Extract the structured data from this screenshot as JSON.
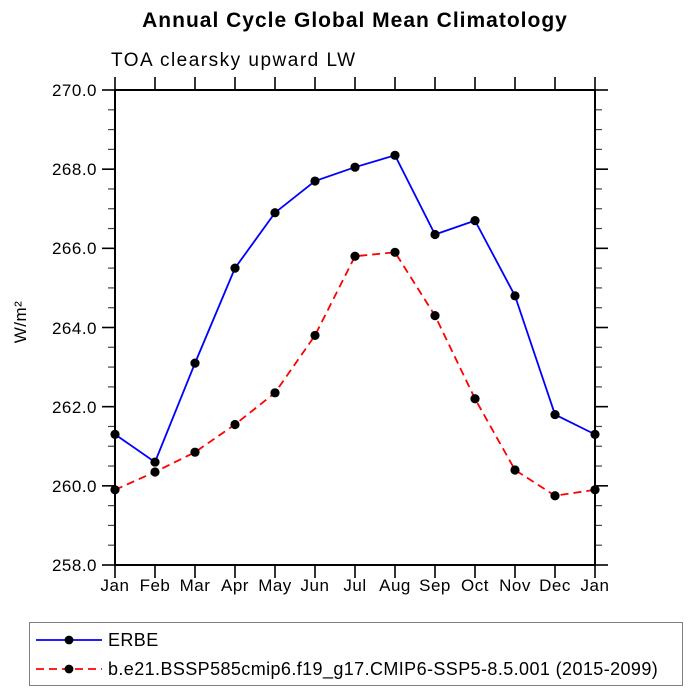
{
  "chart_data": {
    "type": "line",
    "title": "Annual Cycle Global Mean Climatology",
    "subtitle": "TOA clearsky upward LW",
    "ylabel": "W/m²",
    "x_categories": [
      "Jan",
      "Feb",
      "Mar",
      "Apr",
      "May",
      "Jun",
      "Jul",
      "Aug",
      "Sep",
      "Oct",
      "Nov",
      "Dec",
      "Jan"
    ],
    "y_tick_labels": [
      "270.0",
      "268.0",
      "266.0",
      "264.0",
      "262.0",
      "260.0",
      "258.0"
    ],
    "ylim": [
      258.0,
      270.0
    ],
    "ytick_major_interval": 2.0,
    "ytick_minor_interval": 0.5,
    "grid": false,
    "legend_position": "bottom box, outside plot",
    "axis_color": "#000000",
    "marker": "filled-circle",
    "marker_color": "#000000",
    "series": [
      {
        "name": "ERBE",
        "color": "#0000ff",
        "line_style": "solid",
        "values": [
          261.3,
          260.6,
          263.1,
          265.5,
          266.9,
          267.7,
          268.05,
          268.35,
          266.35,
          266.7,
          264.8,
          261.8,
          261.3
        ]
      },
      {
        "name": "b.e21.BSSP585cmip6.f19_g17.CMIP6-SSP5-8.5.001 (2015-2099)",
        "color": "#ff0000",
        "line_style": "dashed",
        "values": [
          259.9,
          260.35,
          260.85,
          261.55,
          262.35,
          263.8,
          265.8,
          265.9,
          264.3,
          262.2,
          260.4,
          259.75,
          259.9
        ]
      }
    ]
  }
}
